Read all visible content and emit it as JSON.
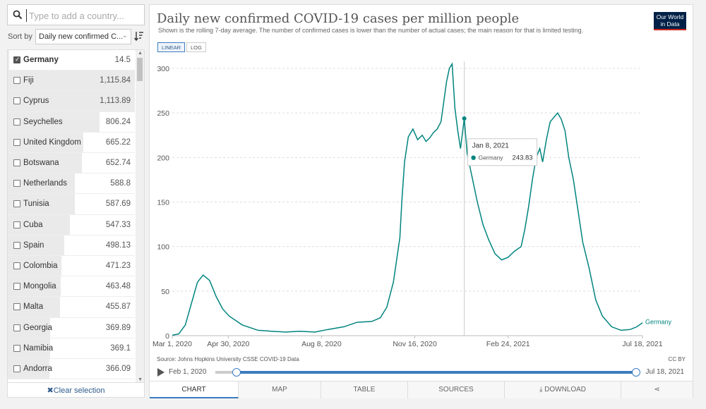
{
  "search": {
    "placeholder": "Type to add a country..."
  },
  "sort": {
    "label": "Sort by",
    "selected": "Daily new confirmed C..."
  },
  "countries": [
    {
      "name": "Germany",
      "value": "14.5",
      "num": 14.5,
      "checked": true
    },
    {
      "name": "Fiji",
      "value": "1,115.84",
      "num": 1115.84,
      "checked": false
    },
    {
      "name": "Cyprus",
      "value": "1,113.89",
      "num": 1113.89,
      "checked": false
    },
    {
      "name": "Seychelles",
      "value": "806.24",
      "num": 806.24,
      "checked": false
    },
    {
      "name": "United Kingdom",
      "value": "665.22",
      "num": 665.22,
      "checked": false
    },
    {
      "name": "Botswana",
      "value": "652.74",
      "num": 652.74,
      "checked": false
    },
    {
      "name": "Netherlands",
      "value": "588.8",
      "num": 588.8,
      "checked": false
    },
    {
      "name": "Tunisia",
      "value": "587.69",
      "num": 587.69,
      "checked": false
    },
    {
      "name": "Cuba",
      "value": "547.33",
      "num": 547.33,
      "checked": false
    },
    {
      "name": "Spain",
      "value": "498.13",
      "num": 498.13,
      "checked": false
    },
    {
      "name": "Colombia",
      "value": "471.23",
      "num": 471.23,
      "checked": false
    },
    {
      "name": "Mongolia",
      "value": "463.48",
      "num": 463.48,
      "checked": false
    },
    {
      "name": "Malta",
      "value": "455.87",
      "num": 455.87,
      "checked": false
    },
    {
      "name": "Georgia",
      "value": "369.89",
      "num": 369.89,
      "checked": false
    },
    {
      "name": "Namibia",
      "value": "369.1",
      "num": 369.1,
      "checked": false
    },
    {
      "name": "Andorra",
      "value": "366.09",
      "num": 366.09,
      "checked": false
    }
  ],
  "clear_selection": "Clear selection",
  "logo": {
    "line1": "Our World",
    "line2": "in Data"
  },
  "scale": {
    "linear": "LINEAR",
    "log": "LOG",
    "active": "linear"
  },
  "source_text": "Source: Johns Hopkins University CSSE COVID-19 Data",
  "license": "CC BY",
  "timeline": {
    "start": "Feb 1, 2020",
    "end": "Jul 18, 2021"
  },
  "tabs": [
    "CHART",
    "MAP",
    "TABLE",
    "SOURCES",
    "DOWNLOAD",
    ""
  ],
  "colors": {
    "series": "#00847e",
    "accent": "#3c7cbf",
    "logo_bg": "#002147",
    "logo_stripe": "#ce261e"
  },
  "chart_data": {
    "type": "line",
    "title": "Daily new confirmed COVID-19 cases per million people",
    "subtitle": "Shown is the rolling 7-day average. The number of confirmed cases is lower than the number of actual cases; the main reason for that is limited testing.",
    "xlabel": "",
    "ylabel": "",
    "ylim": [
      0,
      300
    ],
    "yticks": [
      0,
      50,
      100,
      150,
      200,
      250,
      300
    ],
    "xticks": [
      "Mar 1, 2020",
      "Apr 30, 2020",
      "Aug 8, 2020",
      "Nov 16, 2020",
      "Feb 24, 2021",
      "Jul 18, 2021"
    ],
    "grid": true,
    "series": [
      {
        "name": "Germany",
        "x": [
          "2020-03-01",
          "2020-03-08",
          "2020-03-15",
          "2020-03-22",
          "2020-03-28",
          "2020-04-03",
          "2020-04-10",
          "2020-04-17",
          "2020-04-24",
          "2020-05-01",
          "2020-05-15",
          "2020-06-01",
          "2020-06-15",
          "2020-07-01",
          "2020-07-15",
          "2020-08-01",
          "2020-08-15",
          "2020-09-01",
          "2020-09-15",
          "2020-10-01",
          "2020-10-10",
          "2020-10-17",
          "2020-10-24",
          "2020-10-31",
          "2020-11-02",
          "2020-11-05",
          "2020-11-09",
          "2020-11-14",
          "2020-11-19",
          "2020-11-24",
          "2020-11-28",
          "2020-12-02",
          "2020-12-06",
          "2020-12-10",
          "2020-12-14",
          "2020-12-17",
          "2020-12-20",
          "2020-12-23",
          "2020-12-26",
          "2020-12-29",
          "2021-01-01",
          "2021-01-04",
          "2021-01-08",
          "2021-01-11",
          "2021-01-14",
          "2021-01-18",
          "2021-01-22",
          "2021-01-28",
          "2021-02-03",
          "2021-02-10",
          "2021-02-17",
          "2021-02-24",
          "2021-03-03",
          "2021-03-10",
          "2021-03-14",
          "2021-03-18",
          "2021-03-22",
          "2021-03-26",
          "2021-03-30",
          "2021-04-02",
          "2021-04-06",
          "2021-04-10",
          "2021-04-14",
          "2021-04-18",
          "2021-04-22",
          "2021-04-26",
          "2021-04-30",
          "2021-05-05",
          "2021-05-10",
          "2021-05-15",
          "2021-05-22",
          "2021-05-29",
          "2021-06-05",
          "2021-06-15",
          "2021-06-25",
          "2021-07-05",
          "2021-07-12",
          "2021-07-18"
        ],
        "y": [
          0.5,
          2,
          12,
          38,
          60,
          68,
          62,
          44,
          30,
          22,
          12,
          6,
          5,
          4,
          5,
          4,
          7,
          10,
          15,
          16,
          20,
          32,
          60,
          110,
          150,
          195,
          223,
          232,
          220,
          225,
          218,
          222,
          228,
          232,
          240,
          262,
          285,
          300,
          305,
          255,
          230,
          210,
          243.83,
          205,
          190,
          170,
          150,
          125,
          108,
          92,
          85,
          88,
          95,
          100,
          120,
          145,
          175,
          200,
          210,
          195,
          220,
          240,
          245,
          250,
          243,
          230,
          200,
          175,
          140,
          105,
          75,
          40,
          22,
          10,
          6,
          7,
          10,
          14.5
        ]
      }
    ],
    "tooltip": {
      "date": "Jan 8, 2021",
      "country": "Germany",
      "value": "243.83"
    }
  }
}
